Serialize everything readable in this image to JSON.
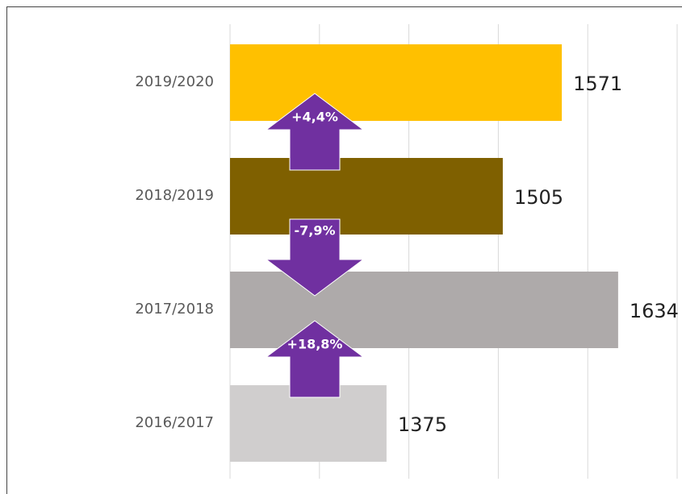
{
  "chart_data": {
    "type": "hbar",
    "categories": [
      "2019/2020",
      "2018/2019",
      "2017/2018",
      "2016/2017"
    ],
    "values": [
      1571,
      1505,
      1634,
      1375
    ],
    "colors": [
      "#ffc000",
      "#7f6000",
      "#aeaaaa",
      "#d0cece"
    ],
    "xlim": [
      1200,
      1700
    ],
    "xticks": [
      1200,
      1300,
      1400,
      1500,
      1600,
      1700
    ],
    "grid": true,
    "annotations": [
      {
        "text": "+4,4%",
        "direction": "up"
      },
      {
        "text": "-7,9%",
        "direction": "down"
      },
      {
        "text": "+18,8%",
        "direction": "up"
      }
    ],
    "annotation_color": "#7030a0"
  }
}
